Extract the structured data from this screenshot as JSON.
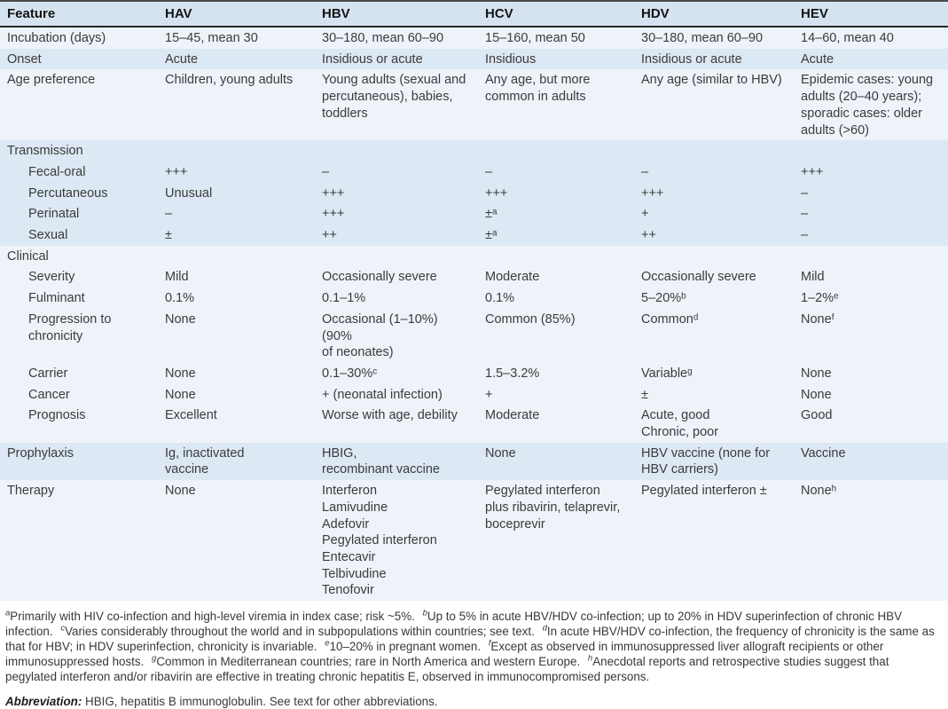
{
  "colors": {
    "stripe_blue": "#dce8f3",
    "stripe_pale": "#edf3f9",
    "header_bg": "#d5e3f0",
    "border_dark": "#262626"
  },
  "table": {
    "columns": [
      "Feature",
      "HAV",
      "HBV",
      "HCV",
      "HDV",
      "HEV"
    ],
    "rows": [
      {
        "type": "data",
        "shade": "light",
        "feature": "Incubation (days)",
        "indent": false,
        "cells": [
          "15–45, mean 30",
          "30–180, mean 60–90",
          "15–160, mean 50",
          "30–180, mean 60–90",
          "14–60, mean 40"
        ]
      },
      {
        "type": "data",
        "shade": "blue",
        "feature": "Onset",
        "indent": false,
        "cells": [
          "Acute",
          "Insidious or acute",
          "Insidious",
          "Insidious or acute",
          "Acute"
        ]
      },
      {
        "type": "data",
        "shade": "light",
        "feature": "Age preference",
        "indent": false,
        "cells": [
          "Children, young adults",
          "Young adults (sexual and\npercutaneous), babies,\ntoddlers",
          "Any age, but more\ncommon in adults",
          "Any age (similar to HBV)",
          "Epidemic cases: young\nadults (20–40 years);\nsporadic cases: older\nadults (>60)"
        ]
      },
      {
        "type": "section",
        "shade": "blue",
        "feature": "Transmission",
        "indent": false,
        "cells": []
      },
      {
        "type": "data",
        "shade": "blue",
        "feature": "Fecal-oral",
        "indent": true,
        "cells": [
          "+++",
          "–",
          "–",
          "–",
          "+++"
        ]
      },
      {
        "type": "data",
        "shade": "blue",
        "feature": "Percutaneous",
        "indent": true,
        "cells": [
          "Unusual",
          "+++",
          "+++",
          "+++",
          "–"
        ]
      },
      {
        "type": "data",
        "shade": "blue",
        "feature": "Perinatal",
        "indent": true,
        "cells": [
          "–",
          "+++",
          "±ᵃ",
          "+",
          "–"
        ]
      },
      {
        "type": "data",
        "shade": "blue",
        "feature": "Sexual",
        "indent": true,
        "cells": [
          "±",
          "++",
          "±ᵃ",
          "++",
          "–"
        ]
      },
      {
        "type": "section",
        "shade": "light",
        "feature": "Clinical",
        "indent": false,
        "cells": []
      },
      {
        "type": "data",
        "shade": "light",
        "feature": "Severity",
        "indent": true,
        "cells": [
          "Mild",
          "Occasionally severe",
          "Moderate",
          "Occasionally severe",
          "Mild"
        ]
      },
      {
        "type": "data",
        "shade": "light",
        "feature": "Fulminant",
        "indent": true,
        "cells": [
          "0.1%",
          "0.1–1%",
          "0.1%",
          "5–20%ᵇ",
          "1–2%ᵉ"
        ]
      },
      {
        "type": "data",
        "shade": "light",
        "feature": "Progression to\nchronicity",
        "indent": true,
        "cells": [
          "None",
          "Occasional (1–10%) (90%\nof neonates)",
          "Common (85%)",
          "Commonᵈ",
          "Noneᶠ"
        ]
      },
      {
        "type": "data",
        "shade": "light",
        "feature": "Carrier",
        "indent": true,
        "cells": [
          "None",
          "0.1–30%ᶜ",
          "1.5–3.2%",
          "Variableᵍ",
          "None"
        ]
      },
      {
        "type": "data",
        "shade": "light",
        "feature": "Cancer",
        "indent": true,
        "cells": [
          "None",
          "+ (neonatal infection)",
          "+",
          "±",
          "None"
        ]
      },
      {
        "type": "data",
        "shade": "light",
        "feature": "Prognosis",
        "indent": true,
        "cells": [
          "Excellent",
          "Worse with age, debility",
          "Moderate",
          "Acute, good\nChronic, poor",
          "Good"
        ]
      },
      {
        "type": "data",
        "shade": "blue",
        "feature": "Prophylaxis",
        "indent": false,
        "cells": [
          "Ig, inactivated\nvaccine",
          "HBIG,\nrecombinant vaccine",
          "None",
          "HBV vaccine (none for\nHBV carriers)",
          "Vaccine"
        ]
      },
      {
        "type": "data",
        "shade": "light",
        "feature": "Therapy",
        "indent": false,
        "cells": [
          "None",
          "Interferon\nLamivudine\nAdefovir\nPegylated interferon\nEntecavir\nTelbivudine\nTenofovir",
          "Pegylated interferon\nplus ribavirin, telaprevir,\nboceprevir",
          "Pegylated interferon ±",
          "Noneʰ"
        ]
      }
    ]
  },
  "footnotes": {
    "items": [
      {
        "sup": "a",
        "text": "Primarily with HIV co-infection and high-level viremia in index case; risk ~5%."
      },
      {
        "sup": "b",
        "text": "Up to 5% in acute HBV/HDV co-infection; up to 20% in HDV superinfection of chronic HBV infection."
      },
      {
        "sup": "c",
        "text": "Varies considerably throughout the world and in subpopulations within countries; see text."
      },
      {
        "sup": "d",
        "text": "In acute HBV/HDV co-infection, the frequency of chronicity is the same as that for HBV; in HDV superinfection, chronicity is invariable."
      },
      {
        "sup": "e",
        "text": "10–20% in pregnant women."
      },
      {
        "sup": "f",
        "text": "Except as observed in immunosuppressed liver allograft recipients or other immunosuppressed hosts."
      },
      {
        "sup": "g",
        "text": "Common in Mediterranean countries; rare in North America and western Europe."
      },
      {
        "sup": "h",
        "text": "Anecdotal reports and retrospective studies suggest that pegylated interferon and/or ribavirin are effective in treating chronic hepatitis E, observed in immunocompromised persons."
      }
    ],
    "abbreviation": {
      "label": "Abbreviation:",
      "text": "HBIG, hepatitis B immunoglobulin. See text for other abbreviations."
    }
  }
}
